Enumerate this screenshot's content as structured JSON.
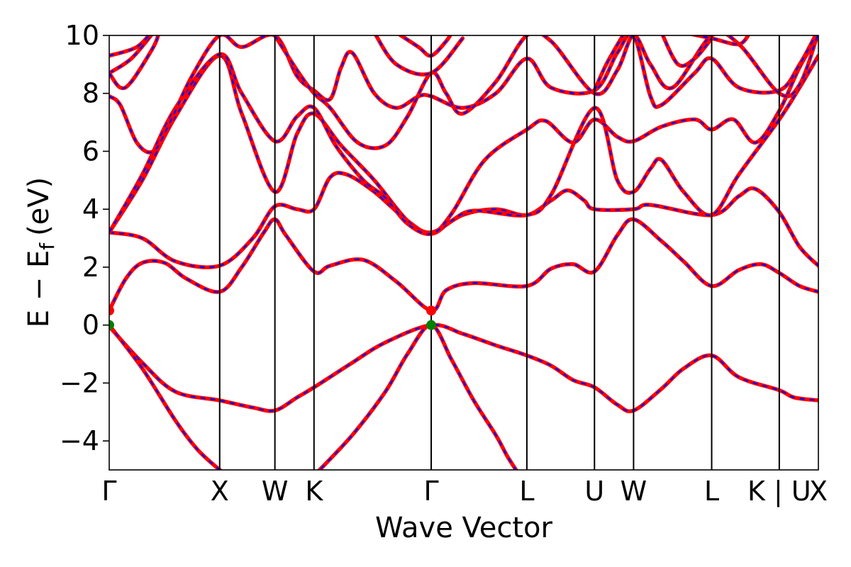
{
  "chart_data": {
    "type": "line",
    "title": "",
    "xlabel": "Wave Vector",
    "ylabel_main": "E − E",
    "ylabel_sub": "f",
    "ylabel_unit": "(eV)",
    "ylim": [
      -5,
      10
    ],
    "yticks": [
      -4,
      -2,
      0,
      2,
      4,
      6,
      8,
      10
    ],
    "ytick_labels": [
      "−4",
      "−2",
      "0",
      "2",
      "4",
      "6",
      "8",
      "10"
    ],
    "grid": false,
    "legend": "none",
    "kpath": [
      {
        "label": "Γ",
        "x": 0
      },
      {
        "label": "X",
        "x": 1.0
      },
      {
        "label": "W",
        "x": 1.5
      },
      {
        "label": "K",
        "x": 1.854
      },
      {
        "label": "Γ",
        "x": 2.915
      },
      {
        "label": "L",
        "x": 3.781
      },
      {
        "label": "U",
        "x": 4.393
      },
      {
        "label": "W",
        "x": 4.747
      },
      {
        "label": "L",
        "x": 5.454
      },
      {
        "label": "K | U",
        "x": 6.066
      },
      {
        "label": "X",
        "x": 6.42
      }
    ],
    "series_colors": {
      "line": "#ff0000",
      "overlay": "#0000ff"
    },
    "bands": [
      [
        [
          0,
          -0.05
        ],
        [
          0.3,
          -1.3
        ],
        [
          0.6,
          -2.3
        ],
        [
          1.0,
          -2.6
        ],
        [
          1.3,
          -2.85
        ],
        [
          1.5,
          -2.95
        ],
        [
          1.7,
          -2.5
        ],
        [
          1.854,
          -2.15
        ],
        [
          2.2,
          -1.3
        ],
        [
          2.5,
          -0.6
        ],
        [
          2.915,
          0.0
        ],
        [
          3.2,
          -0.3
        ],
        [
          3.5,
          -0.7
        ],
        [
          3.781,
          -1.05
        ],
        [
          4.0,
          -1.4
        ],
        [
          4.2,
          -1.9
        ],
        [
          4.393,
          -2.15
        ],
        [
          4.6,
          -2.75
        ],
        [
          4.747,
          -2.95
        ],
        [
          5.0,
          -2.2
        ],
        [
          5.2,
          -1.5
        ],
        [
          5.454,
          -1.05
        ],
        [
          5.7,
          -1.8
        ],
        [
          6.066,
          -2.25
        ],
        [
          6.2,
          -2.5
        ],
        [
          6.42,
          -2.6
        ]
      ],
      [
        [
          0,
          0.0
        ],
        [
          0.3,
          -1.5
        ],
        [
          0.6,
          -3.3
        ],
        [
          0.8,
          -4.3
        ],
        [
          1.0,
          -5.0
        ],
        [
          1.2,
          -5.6
        ]
      ],
      [
        [
          1.854,
          -5.2
        ],
        [
          2.2,
          -3.8
        ],
        [
          2.5,
          -2.3
        ],
        [
          2.7,
          -1.0
        ],
        [
          2.915,
          0.0
        ],
        [
          3.1,
          -1.2
        ],
        [
          3.3,
          -2.6
        ],
        [
          3.5,
          -3.8
        ],
        [
          3.6,
          -4.5
        ],
        [
          3.7,
          -5.1
        ]
      ],
      [
        [
          0,
          0.5
        ],
        [
          0.15,
          1.6
        ],
        [
          0.3,
          2.15
        ],
        [
          0.5,
          2.15
        ],
        [
          0.7,
          1.6
        ],
        [
          1.0,
          1.15
        ],
        [
          1.2,
          2.0
        ],
        [
          1.4,
          3.2
        ],
        [
          1.5,
          3.65
        ],
        [
          1.6,
          3.1
        ],
        [
          1.854,
          1.85
        ],
        [
          2.0,
          2.05
        ],
        [
          2.3,
          2.25
        ],
        [
          2.6,
          1.5
        ],
        [
          2.915,
          0.5
        ],
        [
          3.05,
          1.2
        ],
        [
          3.3,
          1.45
        ],
        [
          3.781,
          1.35
        ],
        [
          4.0,
          1.95
        ],
        [
          4.2,
          2.1
        ],
        [
          4.393,
          1.85
        ],
        [
          4.6,
          3.1
        ],
        [
          4.747,
          3.65
        ],
        [
          5.0,
          2.9
        ],
        [
          5.2,
          2.2
        ],
        [
          5.454,
          1.35
        ],
        [
          5.7,
          1.9
        ],
        [
          5.9,
          2.1
        ],
        [
          6.066,
          1.8
        ],
        [
          6.25,
          1.35
        ],
        [
          6.42,
          1.15
        ]
      ],
      [
        [
          0,
          3.2
        ],
        [
          0.3,
          3.0
        ],
        [
          0.6,
          2.2
        ],
        [
          1.0,
          2.05
        ],
        [
          1.3,
          3.0
        ],
        [
          1.5,
          4.1
        ],
        [
          1.7,
          4.0
        ],
        [
          1.854,
          4.0
        ],
        [
          2.0,
          5.1
        ],
        [
          2.15,
          5.2
        ],
        [
          2.4,
          4.6
        ],
        [
          2.7,
          3.6
        ],
        [
          2.915,
          3.2
        ],
        [
          3.2,
          3.8
        ],
        [
          3.5,
          4.0
        ],
        [
          3.781,
          3.8
        ],
        [
          4.0,
          4.3
        ],
        [
          4.15,
          4.65
        ],
        [
          4.3,
          4.3
        ],
        [
          4.393,
          4.0
        ],
        [
          4.747,
          4.0
        ],
        [
          4.9,
          4.15
        ],
        [
          5.454,
          3.8
        ],
        [
          5.7,
          4.45
        ],
        [
          5.85,
          4.7
        ],
        [
          6.066,
          3.9
        ],
        [
          6.25,
          2.7
        ],
        [
          6.42,
          2.05
        ]
      ],
      [
        [
          0,
          3.2
        ],
        [
          0.3,
          5.0
        ],
        [
          0.6,
          7.2
        ],
        [
          1.0,
          9.3
        ],
        [
          1.2,
          7.3
        ],
        [
          1.5,
          4.6
        ],
        [
          1.7,
          6.6
        ],
        [
          1.854,
          7.3
        ],
        [
          2.1,
          6.2
        ],
        [
          2.4,
          5.0
        ],
        [
          2.7,
          3.6
        ],
        [
          2.915,
          3.15
        ],
        [
          3.1,
          3.6
        ],
        [
          3.3,
          3.95
        ],
        [
          3.781,
          3.8
        ],
        [
          4.0,
          4.5
        ],
        [
          4.393,
          7.5
        ],
        [
          4.6,
          5.0
        ],
        [
          4.747,
          4.6
        ],
        [
          4.9,
          5.4
        ],
        [
          5.0,
          5.7
        ],
        [
          5.2,
          4.6
        ],
        [
          5.454,
          3.8
        ],
        [
          5.7,
          5.2
        ],
        [
          6.066,
          7.1
        ],
        [
          6.25,
          8.2
        ],
        [
          6.42,
          9.3
        ]
      ],
      [
        [
          0,
          3.2
        ],
        [
          0.3,
          5.2
        ],
        [
          0.6,
          7.5
        ],
        [
          1.0,
          9.35
        ],
        [
          1.2,
          8.0
        ],
        [
          1.5,
          6.35
        ],
        [
          1.7,
          7.2
        ],
        [
          1.854,
          7.5
        ],
        [
          2.05,
          6.2
        ],
        [
          2.3,
          5.0
        ],
        [
          2.5,
          4.4
        ],
        [
          2.7,
          3.5
        ],
        [
          2.915,
          3.15
        ],
        [
          3.1,
          3.85
        ],
        [
          3.4,
          5.7
        ],
        [
          3.781,
          6.75
        ],
        [
          3.95,
          7.05
        ],
        [
          4.2,
          6.3
        ],
        [
          4.393,
          7.1
        ],
        [
          4.6,
          6.5
        ],
        [
          4.747,
          6.35
        ],
        [
          5.0,
          6.85
        ],
        [
          5.3,
          7.1
        ],
        [
          5.454,
          6.75
        ],
        [
          5.65,
          7.1
        ],
        [
          5.85,
          6.3
        ],
        [
          6.066,
          7.4
        ],
        [
          6.25,
          8.9
        ],
        [
          6.42,
          10.0
        ]
      ],
      [
        [
          0,
          7.9
        ],
        [
          0.1,
          7.6
        ],
        [
          0.25,
          6.3
        ],
        [
          0.4,
          6.0
        ],
        [
          0.55,
          7.0
        ],
        [
          0.75,
          8.6
        ],
        [
          1.0,
          10.0
        ],
        [
          1.2,
          9.6
        ],
        [
          1.5,
          10.0
        ],
        [
          1.7,
          8.6
        ],
        [
          1.854,
          8.1
        ],
        [
          2.0,
          7.8
        ],
        [
          2.1,
          8.9
        ],
        [
          2.2,
          9.4
        ],
        [
          2.4,
          8.0
        ],
        [
          2.6,
          7.5
        ],
        [
          2.8,
          7.9
        ],
        [
          2.915,
          7.9
        ],
        [
          3.2,
          7.5
        ],
        [
          3.5,
          8.0
        ],
        [
          3.781,
          9.2
        ],
        [
          4.0,
          8.2
        ],
        [
          4.393,
          8.1
        ],
        [
          4.6,
          9.4
        ],
        [
          4.747,
          10.0
        ],
        [
          4.9,
          7.9
        ],
        [
          5.0,
          7.6
        ],
        [
          5.3,
          8.7
        ],
        [
          5.454,
          9.2
        ],
        [
          5.7,
          8.2
        ],
        [
          6.066,
          8.1
        ],
        [
          6.25,
          9.0
        ],
        [
          6.42,
          10.2
        ]
      ],
      [
        [
          0,
          8.7
        ],
        [
          0.2,
          9.2
        ],
        [
          0.4,
          10.1
        ]
      ],
      [
        [
          0,
          8.7
        ],
        [
          0.1,
          8.2
        ],
        [
          0.2,
          8.4
        ],
        [
          0.4,
          9.6
        ],
        [
          0.45,
          10.1
        ]
      ],
      [
        [
          0,
          9.3
        ],
        [
          0.25,
          9.6
        ],
        [
          0.4,
          10.2
        ]
      ],
      [
        [
          1.5,
          10.0
        ],
        [
          1.7,
          8.8
        ],
        [
          1.854,
          8.0
        ],
        [
          2.0,
          7.5
        ],
        [
          2.25,
          6.3
        ],
        [
          2.5,
          6.2
        ],
        [
          2.7,
          7.2
        ],
        [
          2.915,
          8.7
        ],
        [
          3.05,
          8.0
        ],
        [
          3.2,
          7.3
        ],
        [
          3.5,
          8.4
        ],
        [
          3.781,
          10.0
        ],
        [
          4.0,
          9.8
        ],
        [
          4.393,
          8.0
        ],
        [
          4.6,
          8.8
        ],
        [
          4.747,
          10.0
        ],
        [
          4.9,
          9.0
        ],
        [
          5.1,
          8.2
        ],
        [
          5.454,
          10.0
        ],
        [
          5.7,
          9.7
        ],
        [
          6.066,
          8.0
        ],
        [
          6.25,
          8.3
        ],
        [
          6.42,
          10.1
        ]
      ],
      [
        [
          2.4,
          10.1
        ],
        [
          2.6,
          9.0
        ],
        [
          2.915,
          8.7
        ],
        [
          3.2,
          9.9
        ]
      ],
      [
        [
          2.6,
          10.1
        ],
        [
          2.8,
          9.6
        ],
        [
          2.915,
          9.3
        ],
        [
          3.05,
          9.8
        ],
        [
          3.1,
          10.1
        ]
      ],
      [
        [
          4.393,
          8.1
        ],
        [
          4.5,
          9.0
        ],
        [
          4.65,
          10.0
        ]
      ],
      [
        [
          5.2,
          10.1
        ],
        [
          5.454,
          9.9
        ],
        [
          5.7,
          9.7
        ],
        [
          5.8,
          10.1
        ]
      ],
      [
        [
          5.0,
          10.1
        ],
        [
          5.15,
          9.0
        ],
        [
          5.3,
          9.2
        ],
        [
          5.454,
          9.9
        ]
      ]
    ],
    "points": [
      {
        "x": 0,
        "y": 0.5,
        "color": "#ff0000"
      },
      {
        "x": 0,
        "y": 0.0,
        "color": "#008000"
      },
      {
        "x": 2.915,
        "y": 0.5,
        "color": "#ff0000"
      },
      {
        "x": 2.915,
        "y": 0.0,
        "color": "#008000"
      }
    ]
  }
}
